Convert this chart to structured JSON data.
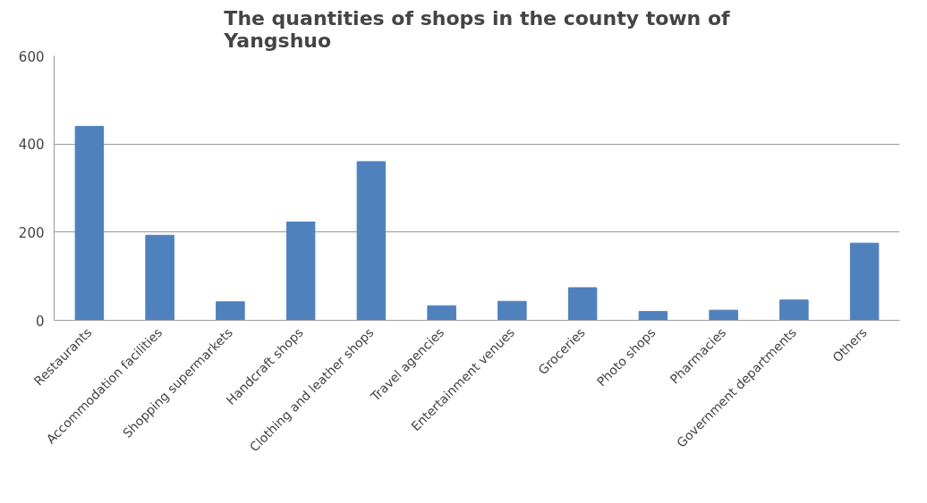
{
  "chart_data": {
    "type": "bar",
    "title": "The quantities of shops in the county town of\nYangshuo",
    "categories": [
      "Restaurants",
      "Accommodation facilities",
      "Shopping supermarkets",
      "Handcraft shops",
      "Clothing and leather shops",
      "Travel agencies",
      "Entertainment venues",
      "Groceries",
      "Photo shops",
      "Pharmacies",
      "Government departments",
      "Others"
    ],
    "values": [
      440,
      193,
      42,
      223,
      360,
      33,
      43,
      74,
      20,
      23,
      46,
      175
    ],
    "color": "#4f81bd",
    "ylim": [
      0,
      600
    ],
    "yticks": [
      0,
      200,
      400,
      600
    ],
    "grid": "y"
  }
}
